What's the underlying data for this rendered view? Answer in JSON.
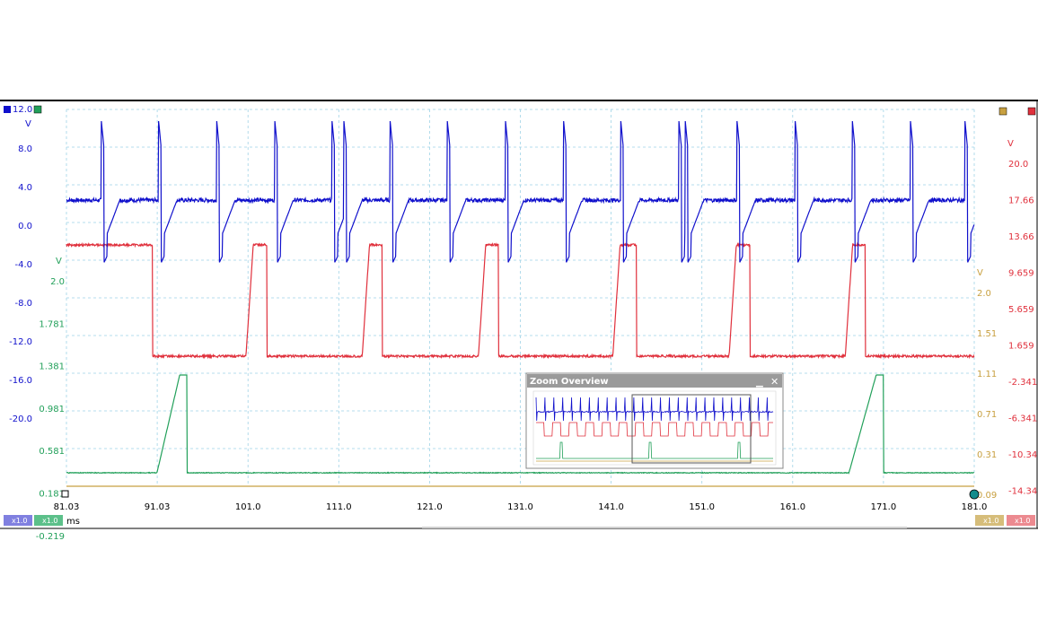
{
  "chart_data": {
    "type": "line",
    "x_unit": "ms",
    "x_ticks": [
      "81.03",
      "91.03",
      "101.0",
      "111.0",
      "121.0",
      "131.0",
      "141.0",
      "151.0",
      "161.0",
      "171.0",
      "181.0"
    ],
    "xlim": [
      81.03,
      181.0
    ],
    "axes": {
      "blue": {
        "unit": "V",
        "top_label": "12.0",
        "ticks": [
          "8.0",
          "4.0",
          "0.0",
          "-4.0",
          "-8.0",
          "-12.0",
          "-16.0",
          "-20.0"
        ],
        "ylim": [
          -24,
          12
        ],
        "color": "#1010cc",
        "scale_badge": "x1.0"
      },
      "green": {
        "unit": "V",
        "ticks": [
          "2.0",
          "1.781",
          "1.381",
          "0.981",
          "0.581",
          "0.181",
          "-0.219"
        ],
        "color": "#22a05a",
        "scale_badge": "x1.0"
      },
      "olive": {
        "unit": "V",
        "ticks": [
          "2.0",
          "1.51",
          "1.11",
          "0.71",
          "0.31",
          "0.09"
        ],
        "color": "#c8a040",
        "scale_badge": "x1.0"
      },
      "red": {
        "unit": "V",
        "ticks": [
          "20.0",
          "17.66",
          "13.66",
          "9.659",
          "5.659",
          "1.659",
          "-2.341",
          "-6.341",
          "-10.34",
          "-14.34"
        ],
        "color": "#e0303c",
        "scale_badge": "x1.0"
      }
    },
    "series": [
      {
        "key": "blue",
        "spikes_ms": [
          84.9,
          91.2,
          97.6,
          104.0,
          110.3,
          111.6,
          116.7,
          123.0,
          129.4,
          135.8,
          142.1,
          148.5,
          149.2,
          154.9,
          161.3,
          167.6,
          174.0,
          180.0
        ],
        "baseline_v": 2.5,
        "spike_high_v": 10.5,
        "spike_low_v": -4.0
      },
      {
        "key": "red",
        "low_intervals_ms": [
          [
            90.5,
            100.8
          ],
          [
            103.1,
            113.6
          ],
          [
            115.8,
            126.4
          ],
          [
            128.6,
            141.2
          ],
          [
            143.8,
            154.0
          ],
          [
            156.3,
            166.8
          ],
          [
            169.0,
            181.0
          ]
        ]
      },
      {
        "key": "green",
        "ramps_ms": [
          [
            91.0,
            93.5,
            94.3
          ],
          [
            167.2,
            170.2,
            171.0
          ]
        ]
      },
      {
        "key": "olive"
      }
    ]
  },
  "overview": {
    "title": "Zoom Overview",
    "min_symbol": "▁",
    "close_symbol": "✕"
  }
}
